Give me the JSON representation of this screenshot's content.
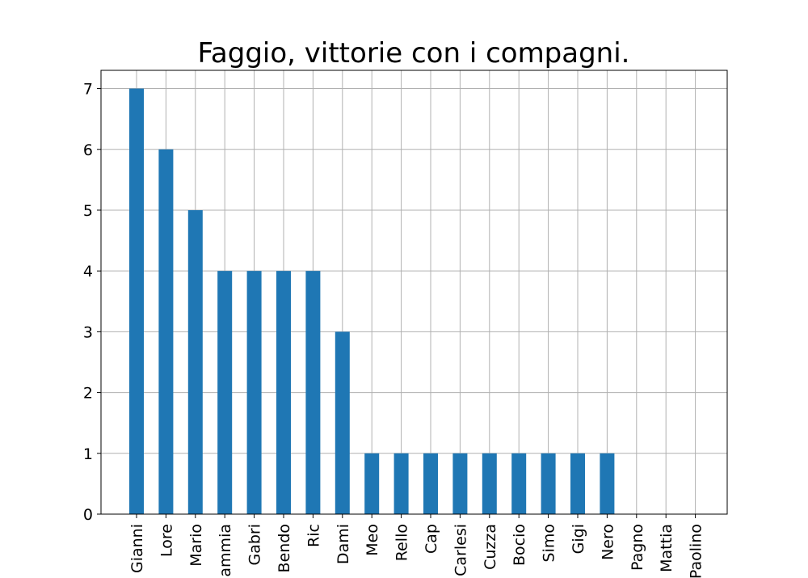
{
  "chart_data": {
    "type": "bar",
    "title": "Faggio, vittorie con i compagni.",
    "xlabel": "",
    "ylabel": "",
    "categories": [
      "Gianni",
      "Lore",
      "Mario",
      "Fiammia",
      "Gabri",
      "Bendo",
      "Ric",
      "Dami",
      "Meo",
      "Rello",
      "Cap",
      "Carlesi",
      "Cuzza",
      "Bocio",
      "Simo",
      "Gigi",
      "Nero",
      "Pagno",
      "Mattia",
      "Paolino"
    ],
    "values": [
      7,
      6,
      5,
      4,
      4,
      4,
      4,
      3,
      1,
      1,
      1,
      1,
      1,
      1,
      1,
      1,
      1,
      0,
      0,
      0
    ],
    "ylim": [
      0,
      7.3
    ],
    "yticks": [
      0,
      1,
      2,
      3,
      4,
      5,
      6,
      7
    ],
    "grid": true,
    "bar_color": "#1f77b4"
  }
}
